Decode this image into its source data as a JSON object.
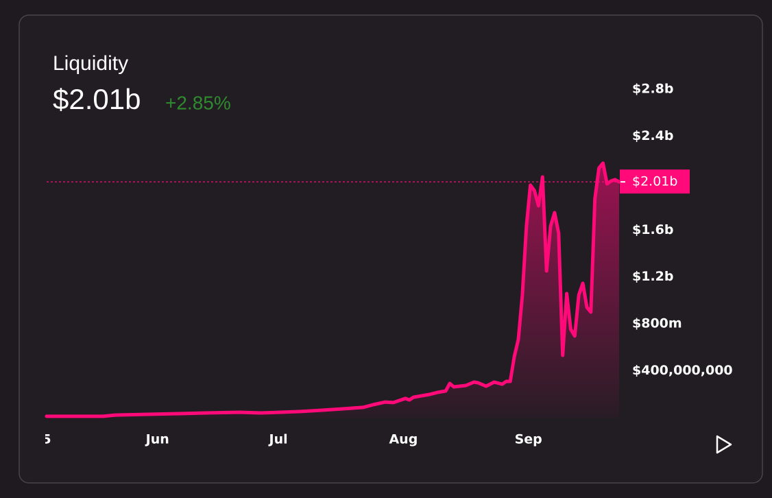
{
  "chart_data": {
    "type": "area-line",
    "title": "Liquidity",
    "change": "+2.85%",
    "current": {
      "value": 2010000000,
      "label": "$2.01b"
    },
    "xlim": [
      0,
      142
    ],
    "xticks": [
      {
        "value": 0,
        "label": "5"
      },
      {
        "value": 27.5,
        "label": "Jun"
      },
      {
        "value": 57.5,
        "label": "Jul"
      },
      {
        "value": 88.5,
        "label": "Aug"
      },
      {
        "value": 119.5,
        "label": "Sep"
      }
    ],
    "ylim": [
      0,
      2800000000
    ],
    "yticks": [
      {
        "value": 400000000,
        "label": "$400,000,000"
      },
      {
        "value": 800000000,
        "label": "$800m"
      },
      {
        "value": 1200000000,
        "label": "$1.2b"
      },
      {
        "value": 1600000000,
        "label": "$1.6b"
      },
      {
        "value": 2400000000,
        "label": "$2.4b"
      },
      {
        "value": 2800000000,
        "label": "$2.8b"
      }
    ],
    "series": [
      {
        "color": "#ff0a78",
        "x": [
          0,
          14,
          17,
          25,
          33,
          39.5,
          48,
          53,
          58,
          63,
          68,
          73.5,
          78.5,
          81,
          84,
          86,
          89,
          90,
          91,
          95,
          97,
          99,
          100,
          101,
          104,
          106,
          107,
          109,
          110,
          111,
          113,
          114,
          115,
          116,
          117,
          118,
          119,
          120,
          121,
          122,
          123,
          124,
          125,
          126,
          127,
          128,
          129,
          130,
          131,
          132,
          133,
          134,
          135,
          136,
          137,
          138,
          139,
          140,
          141,
          142
        ],
        "values": [
          12000000,
          12000000,
          23000000,
          29000000,
          35000000,
          41000000,
          47000000,
          41000000,
          47000000,
          53000000,
          64000000,
          76000000,
          88000000,
          111000000,
          134000000,
          129000000,
          164000000,
          152000000,
          175000000,
          199000000,
          216000000,
          228000000,
          292000000,
          263000000,
          275000000,
          304000000,
          298000000,
          269000000,
          286000000,
          304000000,
          286000000,
          310000000,
          310000000,
          520000000,
          666000000,
          1046000000,
          1631000000,
          1982000000,
          1935000000,
          1806000000,
          2052000000,
          1251000000,
          1631000000,
          1748000000,
          1573000000,
          532000000,
          1058000000,
          754000000,
          696000000,
          1046000000,
          1146000000,
          941000000,
          900000000,
          1865000000,
          2128000000,
          2169000000,
          1993000000,
          2017000000,
          2029000000,
          2010000000
        ]
      }
    ]
  }
}
